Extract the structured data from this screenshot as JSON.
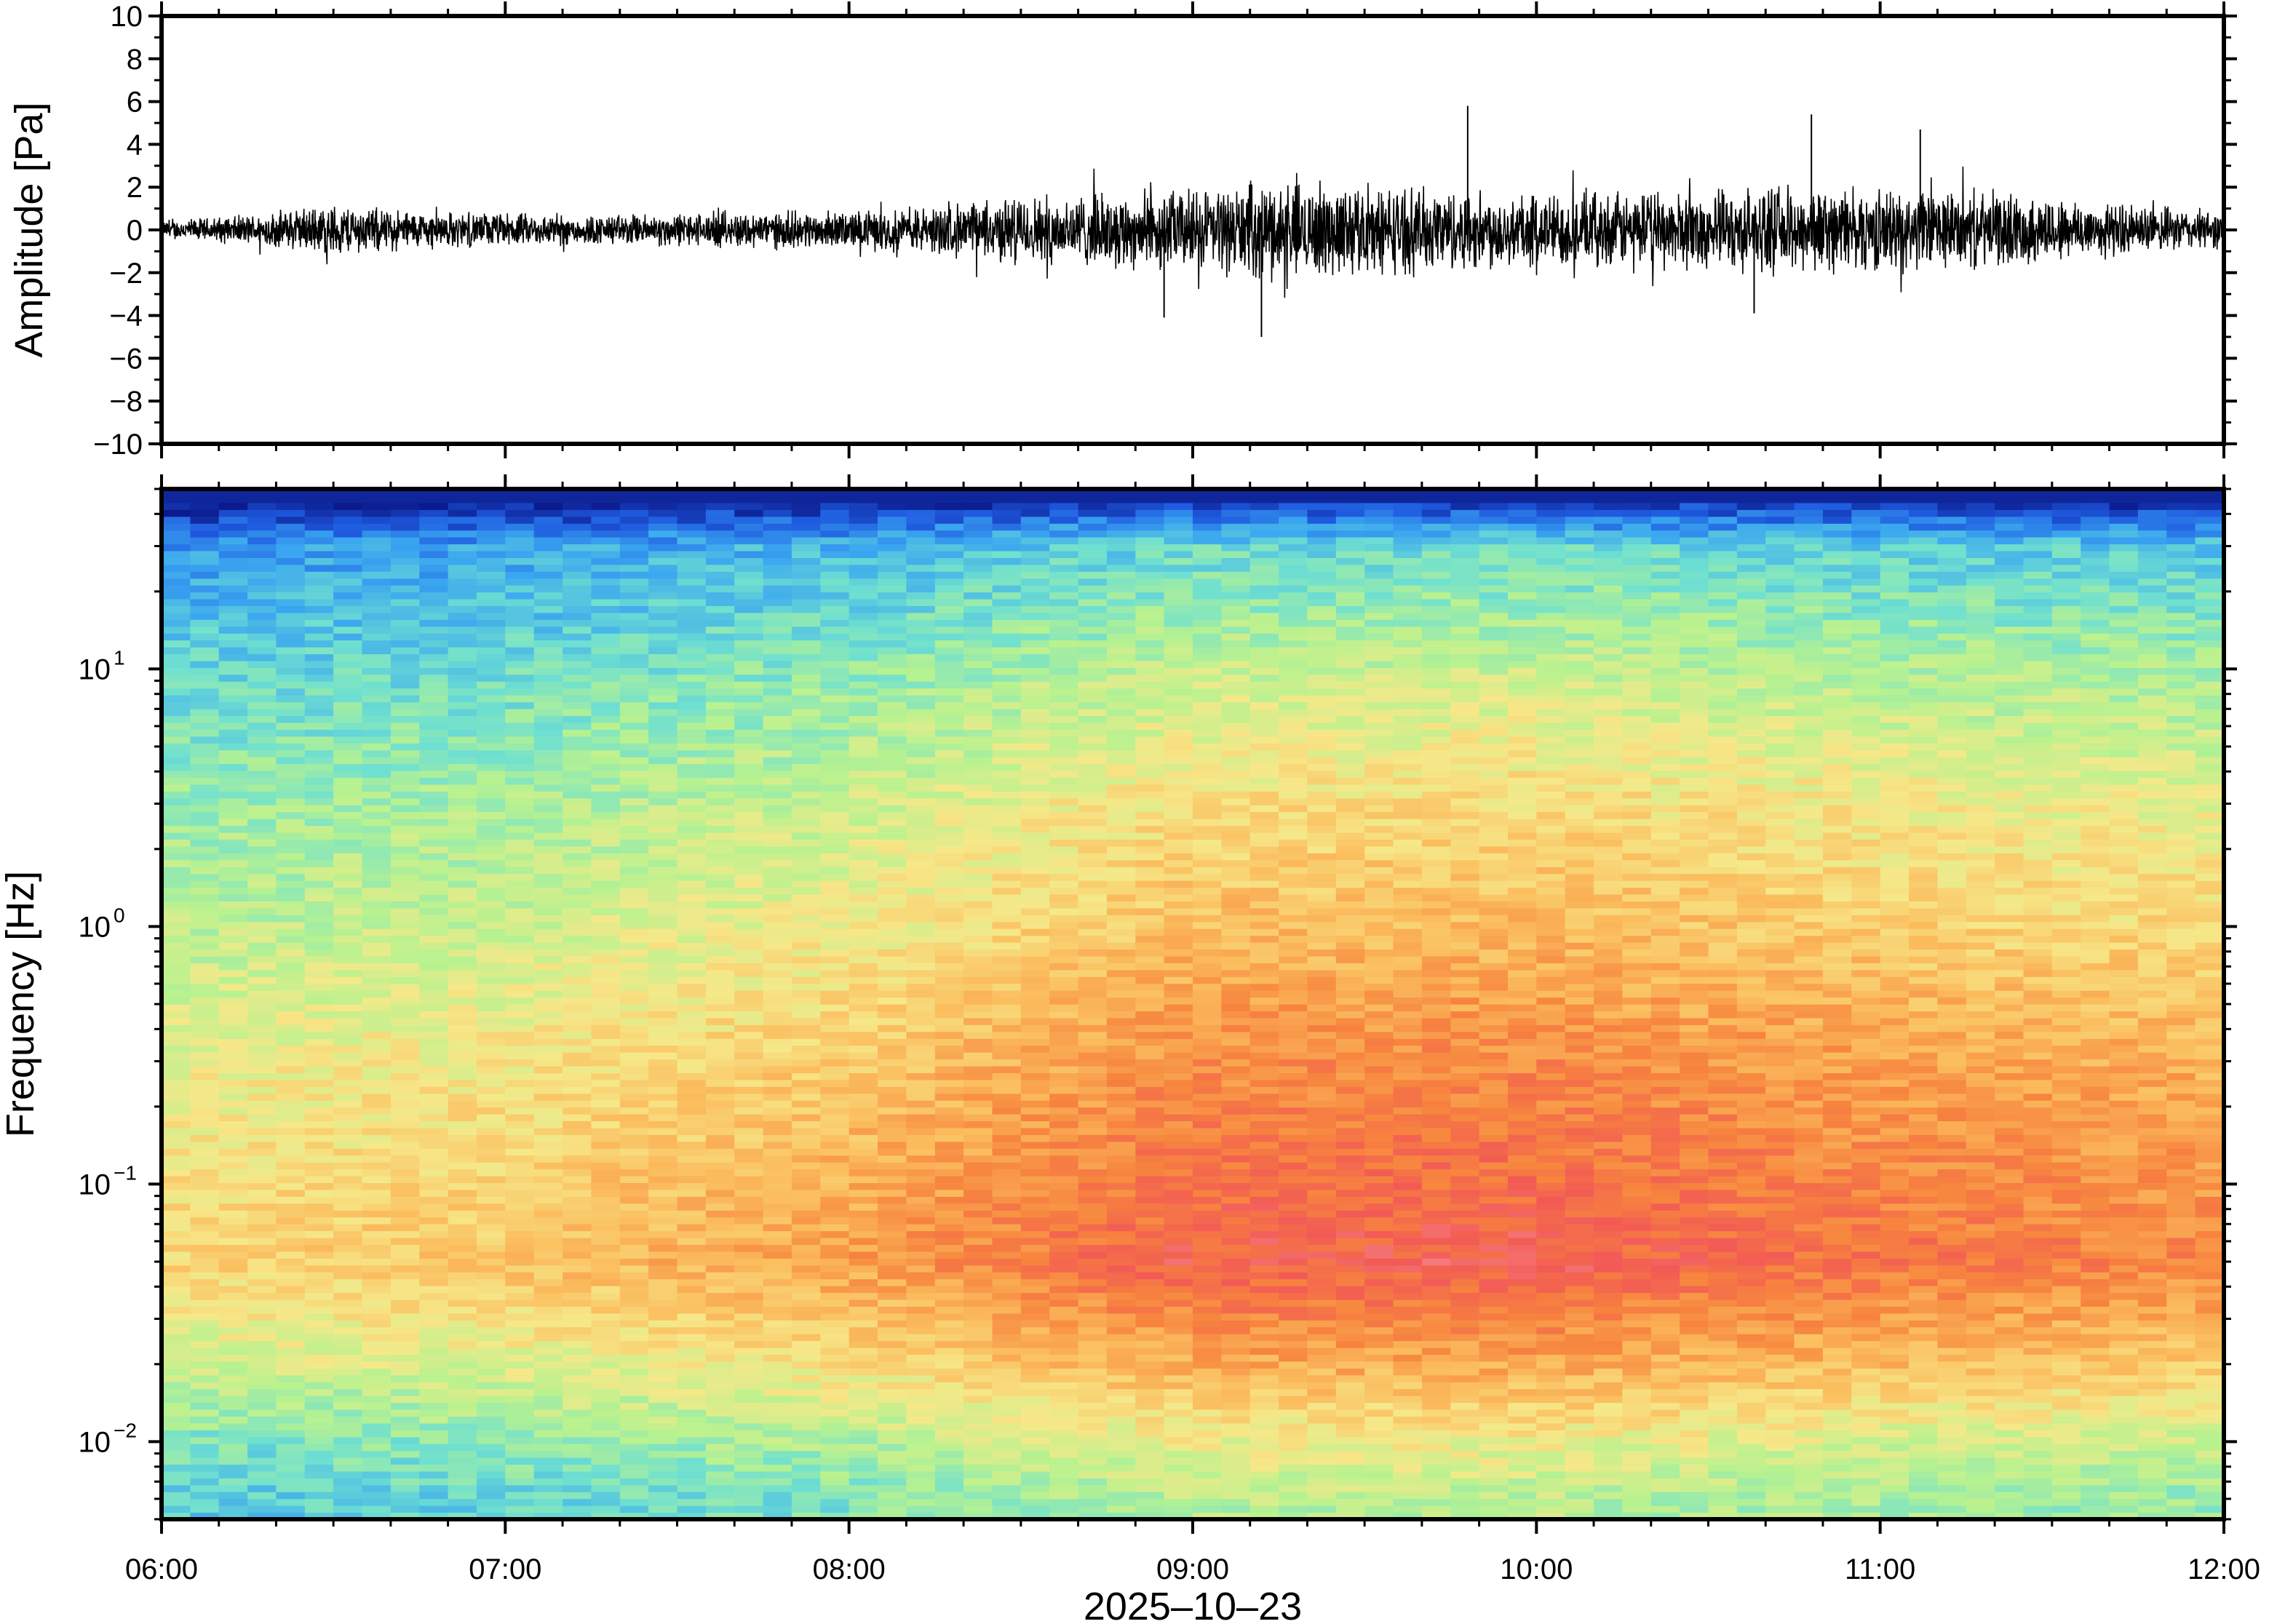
{
  "chart_data": [
    {
      "type": "line",
      "title": "",
      "xlabel": "",
      "ylabel": "Amplitude [Pa]",
      "ylim": [
        -10,
        10
      ],
      "y_ticks": [
        -10,
        -8,
        -6,
        -4,
        -2,
        0,
        2,
        4,
        6,
        8,
        10
      ],
      "y_tick_labels": [
        "−10",
        "−8",
        "−6",
        "−4",
        "−2",
        "0",
        "2",
        "4",
        "6",
        "8",
        "10"
      ],
      "x_range": [
        "2025-10-23T06:00",
        "2025-10-23T12:00"
      ],
      "grid": false,
      "series": [
        {
          "x": [
            "06:00",
            "06:15",
            "06:30",
            "06:45",
            "07:00",
            "07:15",
            "07:30",
            "07:45",
            "08:00",
            "08:15",
            "08:30",
            "08:45",
            "09:00",
            "09:15",
            "09:30",
            "09:45",
            "10:00",
            "10:15",
            "10:30",
            "10:45",
            "11:00",
            "11:15",
            "11:30",
            "11:45",
            "12:00"
          ],
          "envelope": [
            0.5,
            0.8,
            1.4,
            1.0,
            0.9,
            0.8,
            0.9,
            1.0,
            1.0,
            1.3,
            1.8,
            2.0,
            2.2,
            2.6,
            2.4,
            2.2,
            2.0,
            2.0,
            2.1,
            2.3,
            2.2,
            2.1,
            1.8,
            1.3,
            1.0
          ],
          "peaks": [
            {
              "x": "09:12",
              "y": -5.0
            },
            {
              "x": "09:48",
              "y": 5.8
            },
            {
              "x": "10:48",
              "y": 5.4
            },
            {
              "x": "11:07",
              "y": 4.7
            },
            {
              "x": "08:55",
              "y": -4.1
            },
            {
              "x": "10:38",
              "y": -3.9
            }
          ]
        }
      ]
    },
    {
      "type": "heatmap",
      "title": "",
      "xlabel": "2025–10–23",
      "ylabel": "Frequency [Hz]",
      "y_scale": "log",
      "ylim": [
        0.005,
        50
      ],
      "y_ticks": [
        0.01,
        0.1,
        1,
        10
      ],
      "y_tick_labels": [
        {
          "base": "10",
          "exp": "−2"
        },
        {
          "base": "10",
          "exp": "−1"
        },
        {
          "base": "10",
          "exp": "0"
        },
        {
          "base": "10",
          "exp": "1"
        }
      ],
      "x_ticks": [
        "06:00",
        "07:00",
        "08:00",
        "09:00",
        "10:00",
        "11:00",
        "12:00"
      ],
      "x_range": [
        "2025-10-23T06:00",
        "2025-10-23T12:00"
      ],
      "colormap": [
        "#0b1a8c",
        "#1f5be0",
        "#3aa6f0",
        "#6fe0d0",
        "#b9f28f",
        "#f6e889",
        "#fbbd5e",
        "#f7853e",
        "#f25a55",
        "#f9a8b7"
      ],
      "relative_power_profile": [
        {
          "freq": 0.006,
          "level": 0.42
        },
        {
          "freq": 0.01,
          "level": 0.5
        },
        {
          "freq": 0.02,
          "level": 0.66
        },
        {
          "freq": 0.05,
          "level": 0.82
        },
        {
          "freq": 0.1,
          "level": 0.78
        },
        {
          "freq": 0.3,
          "level": 0.72
        },
        {
          "freq": 1,
          "level": 0.62
        },
        {
          "freq": 3,
          "level": 0.55
        },
        {
          "freq": 10,
          "level": 0.44
        },
        {
          "freq": 30,
          "level": 0.3
        },
        {
          "freq": 48,
          "level": 0.0
        }
      ],
      "time_intensity": [
        "06:00",
        "07:00",
        "08:00",
        "09:00",
        "10:00",
        "11:00",
        "12:00"
      ],
      "time_intensity_levels": [
        0.78,
        0.82,
        0.9,
        1.05,
        1.06,
        1.0,
        0.96
      ]
    }
  ]
}
